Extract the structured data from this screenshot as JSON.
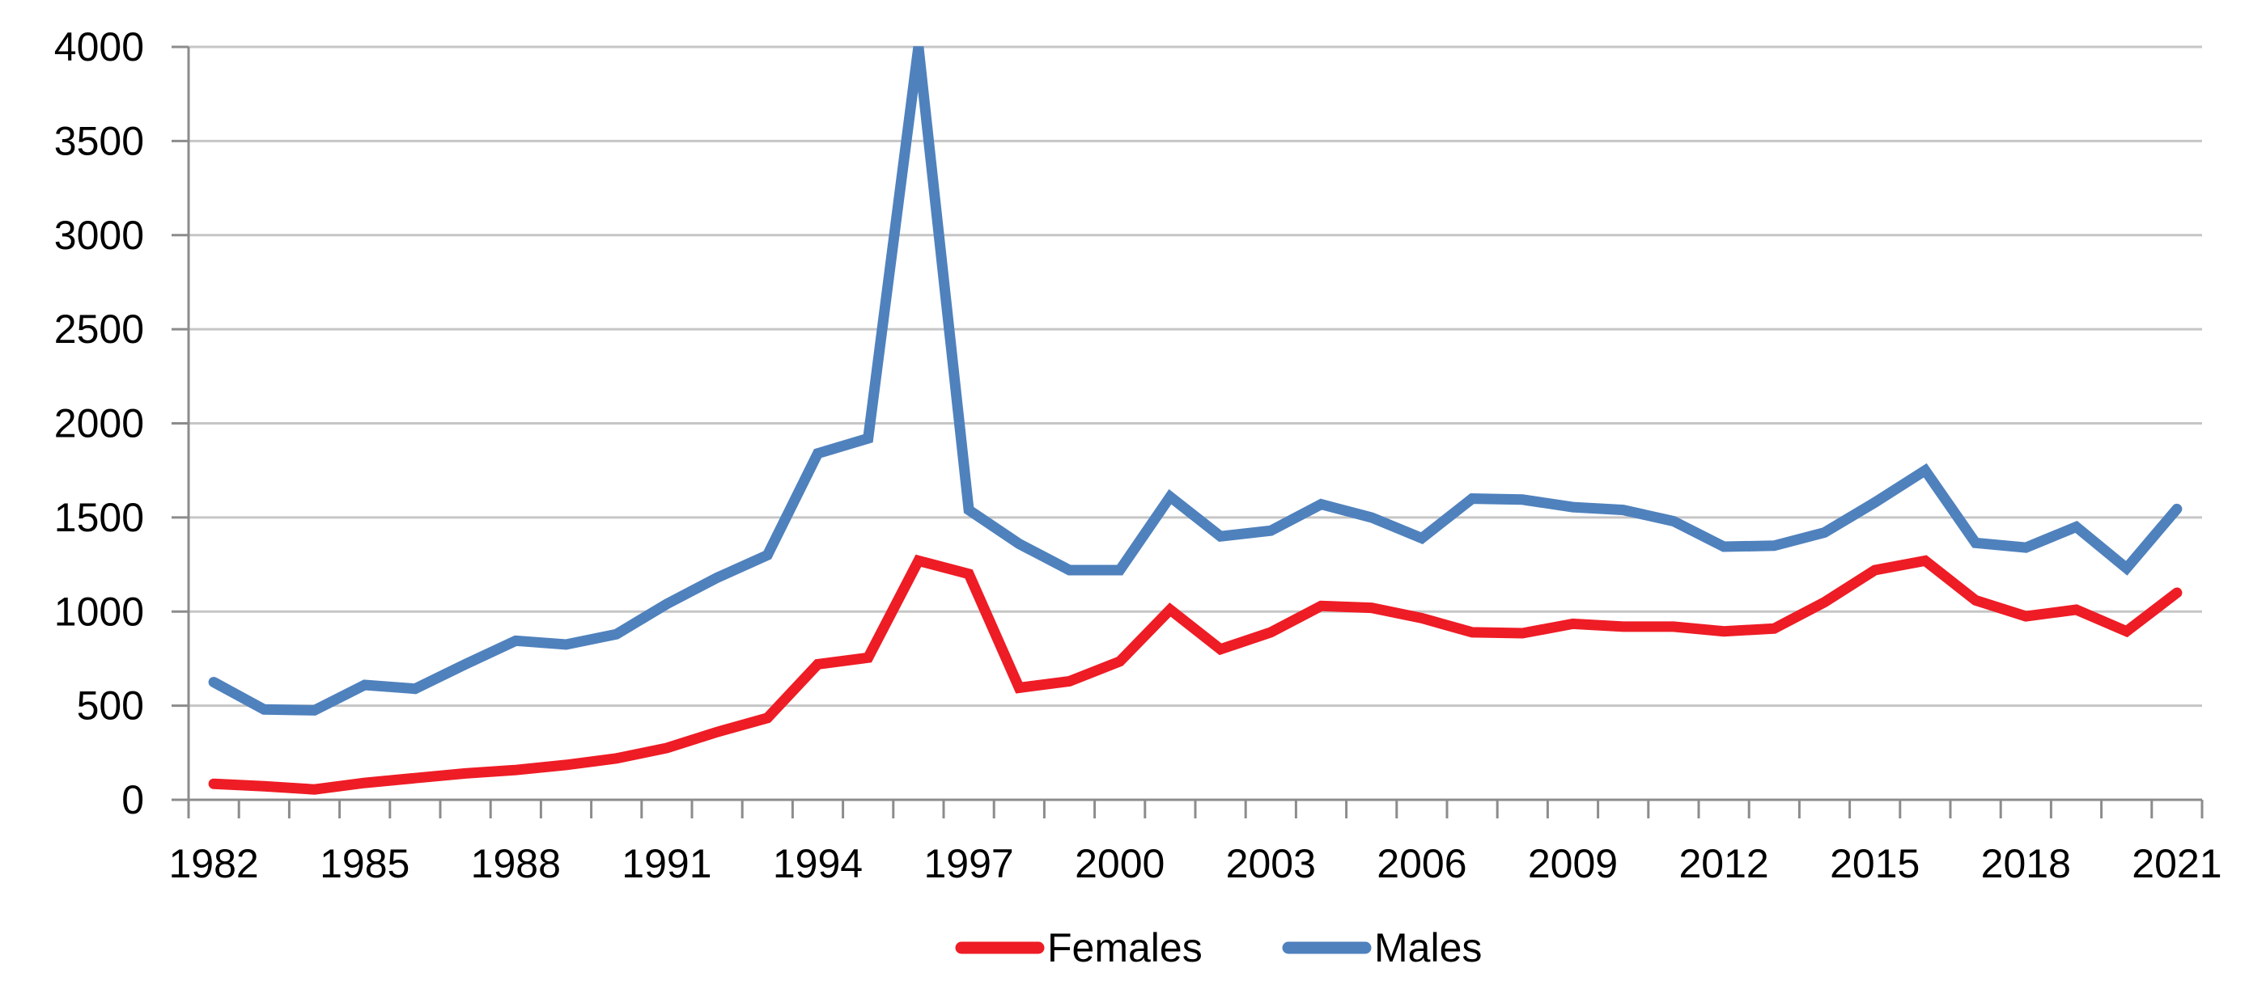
{
  "chart_data": {
    "type": "line",
    "title": "",
    "xlabel": "",
    "ylabel": "",
    "x": [
      1982,
      1983,
      1984,
      1985,
      1986,
      1987,
      1988,
      1989,
      1990,
      1991,
      1992,
      1993,
      1994,
      1995,
      1996,
      1997,
      1998,
      1999,
      2000,
      2001,
      2002,
      2003,
      2004,
      2005,
      2006,
      2007,
      2008,
      2009,
      2010,
      2011,
      2012,
      2013,
      2014,
      2015,
      2016,
      2017,
      2018,
      2019,
      2020,
      2021
    ],
    "series": [
      {
        "name": "Females",
        "color": "#ee1c25",
        "values": [
          85,
          72,
          55,
          90,
          115,
          140,
          158,
          185,
          220,
          275,
          360,
          435,
          720,
          755,
          1270,
          1200,
          595,
          630,
          735,
          1010,
          800,
          890,
          1030,
          1020,
          965,
          890,
          885,
          935,
          920,
          920,
          895,
          910,
          1050,
          1220,
          1270,
          1060,
          975,
          1010,
          895,
          1100
        ]
      },
      {
        "name": "Males",
        "color": "#4f81bd",
        "values": [
          625,
          480,
          475,
          610,
          590,
          720,
          845,
          825,
          880,
          1040,
          1180,
          1300,
          1840,
          1920,
          4000,
          1540,
          1360,
          1220,
          1220,
          1610,
          1400,
          1430,
          1570,
          1500,
          1390,
          1600,
          1595,
          1555,
          1540,
          1480,
          1345,
          1350,
          1420,
          1580,
          1750,
          1365,
          1340,
          1450,
          1230,
          1545
        ]
      }
    ],
    "ylim": [
      0,
      4000
    ],
    "ytick_step": 500,
    "ytick_labels": [
      "0",
      "500",
      "1000",
      "1500",
      "2000",
      "2500",
      "3000",
      "3500",
      "4000"
    ],
    "xtick_labels": [
      "1982",
      "1985",
      "1988",
      "1991",
      "1994",
      "1997",
      "2000",
      "2003",
      "2006",
      "2009",
      "2012",
      "2015",
      "2018",
      "2021"
    ],
    "xtick_label_every": 3,
    "grid": "horizontal",
    "legend_position": "bottom",
    "colors": {
      "gridline": "#c6c6c6",
      "axis": "#8c8c8c",
      "text": "#000000",
      "background": "#ffffff"
    }
  }
}
